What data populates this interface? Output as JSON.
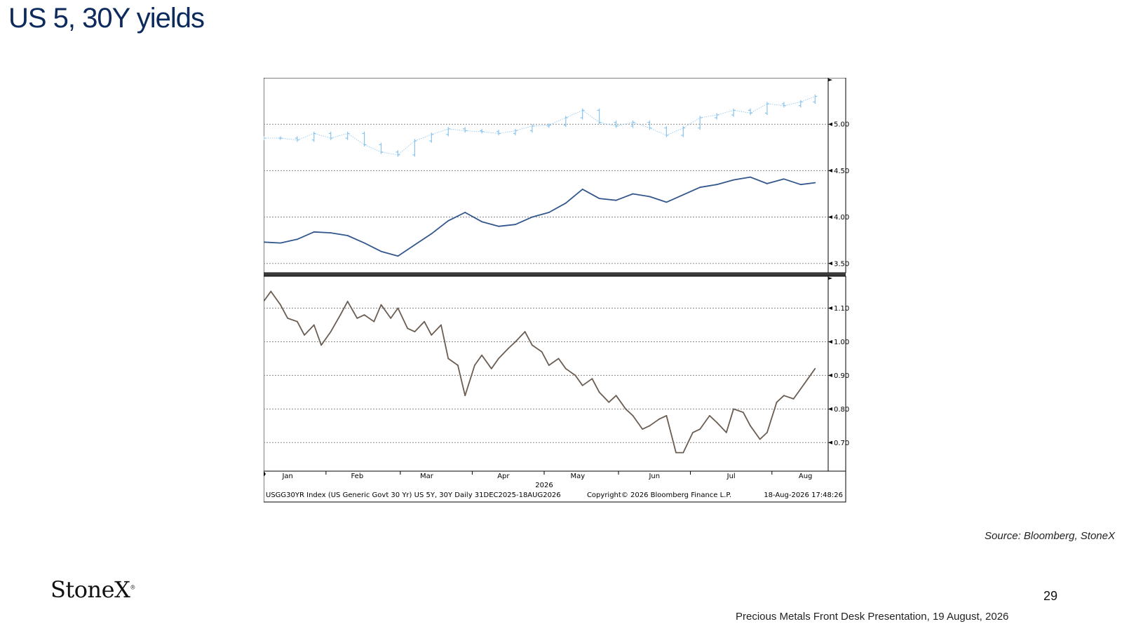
{
  "slide": {
    "title": "US 5, 30Y yields",
    "source": "Source: Bloomberg, StoneX",
    "logo": "StoneX",
    "logo_mark": "®",
    "page_number": "29",
    "footer": "Precious Metals Front Desk Presentation, 19 August, 2026"
  },
  "colors": {
    "us30y": "#89c4ee",
    "us5y": "#33578c",
    "spread": "#6b5d52",
    "grid": "#888888",
    "axis": "#000000",
    "title": "#0c2a5b"
  },
  "chart_data": [
    {
      "type": "line",
      "panel": "top",
      "ylim": [
        3.4,
        5.5
      ],
      "yticks": [
        3.5,
        4.0,
        4.5,
        5.0
      ],
      "ytick_labels": [
        "3.50",
        "4.00",
        "4.50",
        "5.00"
      ],
      "grid": true,
      "series": [
        {
          "style": "ohlc-bars",
          "color": "#89c4ee",
          "x": [
            "2025-12-31",
            "2026-01-07",
            "2026-01-14",
            "2026-01-21",
            "2026-01-28",
            "2026-02-04",
            "2026-02-11",
            "2026-02-18",
            "2026-02-25",
            "2026-03-04",
            "2026-03-11",
            "2026-03-18",
            "2026-03-25",
            "2026-04-01",
            "2026-04-08",
            "2026-04-15",
            "2026-04-22",
            "2026-04-29",
            "2026-05-06",
            "2026-05-13",
            "2026-05-20",
            "2026-05-27",
            "2026-06-03",
            "2026-06-10",
            "2026-06-17",
            "2026-06-24",
            "2026-07-01",
            "2026-07-08",
            "2026-07-15",
            "2026-07-22",
            "2026-07-29",
            "2026-08-05",
            "2026-08-12",
            "2026-08-18"
          ],
          "values": [
            4.85,
            4.85,
            4.83,
            4.9,
            4.85,
            4.9,
            4.78,
            4.7,
            4.67,
            4.82,
            4.89,
            4.95,
            4.93,
            4.92,
            4.9,
            4.93,
            4.98,
            4.99,
            5.07,
            5.15,
            5.02,
            4.98,
            5.02,
            4.96,
            4.88,
            4.96,
            5.07,
            5.1,
            5.15,
            5.12,
            5.22,
            5.2,
            5.24,
            5.3
          ]
        },
        {
          "style": "line",
          "color": "#33578c",
          "x": [
            "2025-12-31",
            "2026-01-07",
            "2026-01-14",
            "2026-01-21",
            "2026-01-28",
            "2026-02-04",
            "2026-02-11",
            "2026-02-18",
            "2026-02-25",
            "2026-03-04",
            "2026-03-11",
            "2026-03-18",
            "2026-03-25",
            "2026-04-01",
            "2026-04-08",
            "2026-04-15",
            "2026-04-22",
            "2026-04-29",
            "2026-05-06",
            "2026-05-13",
            "2026-05-20",
            "2026-05-27",
            "2026-06-03",
            "2026-06-10",
            "2026-06-17",
            "2026-06-24",
            "2026-07-01",
            "2026-07-08",
            "2026-07-15",
            "2026-07-22",
            "2026-07-29",
            "2026-08-05",
            "2026-08-12",
            "2026-08-18"
          ],
          "values": [
            3.73,
            3.72,
            3.76,
            3.84,
            3.83,
            3.8,
            3.72,
            3.63,
            3.58,
            3.7,
            3.82,
            3.96,
            4.05,
            3.95,
            3.9,
            3.92,
            4.0,
            4.05,
            4.15,
            4.3,
            4.2,
            4.18,
            4.25,
            4.22,
            4.16,
            4.24,
            4.32,
            4.35,
            4.4,
            4.43,
            4.36,
            4.41,
            4.35,
            4.37
          ]
        }
      ]
    },
    {
      "type": "line",
      "panel": "bottom",
      "ylim": [
        0.615,
        1.195
      ],
      "yticks": [
        0.7,
        0.8,
        0.9,
        1.0,
        1.1
      ],
      "ytick_labels": [
        "0.70",
        "0.80",
        "0.90",
        "1.00",
        "1.10"
      ],
      "grid": true,
      "series": [
        {
          "style": "line",
          "color": "#6b5d52",
          "x": [
            "2025-12-31",
            "2026-01-03",
            "2026-01-07",
            "2026-01-10",
            "2026-01-14",
            "2026-01-17",
            "2026-01-21",
            "2026-01-24",
            "2026-01-28",
            "2026-02-01",
            "2026-02-04",
            "2026-02-08",
            "2026-02-11",
            "2026-02-15",
            "2026-02-18",
            "2026-02-22",
            "2026-02-25",
            "2026-03-01",
            "2026-03-04",
            "2026-03-08",
            "2026-03-11",
            "2026-03-15",
            "2026-03-18",
            "2026-03-22",
            "2026-03-25",
            "2026-03-29",
            "2026-04-01",
            "2026-04-05",
            "2026-04-08",
            "2026-04-12",
            "2026-04-15",
            "2026-04-19",
            "2026-04-22",
            "2026-04-26",
            "2026-04-29",
            "2026-05-03",
            "2026-05-06",
            "2026-05-10",
            "2026-05-13",
            "2026-05-17",
            "2026-05-20",
            "2026-05-24",
            "2026-05-27",
            "2026-05-31",
            "2026-06-03",
            "2026-06-07",
            "2026-06-10",
            "2026-06-14",
            "2026-06-17",
            "2026-06-21",
            "2026-06-24",
            "2026-06-28",
            "2026-07-01",
            "2026-07-05",
            "2026-07-08",
            "2026-07-12",
            "2026-07-15",
            "2026-07-19",
            "2026-07-22",
            "2026-07-26",
            "2026-07-29",
            "2026-08-02",
            "2026-08-05",
            "2026-08-09",
            "2026-08-12",
            "2026-08-15",
            "2026-08-18"
          ],
          "values": [
            1.12,
            1.15,
            1.11,
            1.07,
            1.06,
            1.02,
            1.05,
            0.99,
            1.03,
            1.08,
            1.12,
            1.07,
            1.08,
            1.06,
            1.11,
            1.07,
            1.1,
            1.04,
            1.03,
            1.06,
            1.02,
            1.05,
            0.95,
            0.93,
            0.84,
            0.93,
            0.96,
            0.92,
            0.95,
            0.98,
            1.0,
            1.03,
            0.99,
            0.97,
            0.93,
            0.95,
            0.92,
            0.9,
            0.87,
            0.89,
            0.85,
            0.82,
            0.84,
            0.8,
            0.78,
            0.74,
            0.75,
            0.77,
            0.78,
            0.67,
            0.67,
            0.73,
            0.74,
            0.78,
            0.76,
            0.73,
            0.8,
            0.79,
            0.75,
            0.71,
            0.73,
            0.82,
            0.84,
            0.83,
            0.86,
            0.89,
            0.92
          ]
        }
      ]
    }
  ],
  "x_axis": {
    "ticks": [
      {
        "date": "2026-01-10",
        "label": "Jan"
      },
      {
        "date": "2026-02-08",
        "label": "Feb"
      },
      {
        "date": "2026-03-09",
        "label": "Mar"
      },
      {
        "date": "2026-04-10",
        "label": "Apr"
      },
      {
        "date": "2026-05-11",
        "label": "May"
      },
      {
        "date": "2026-06-12",
        "label": "Jun"
      },
      {
        "date": "2026-07-14",
        "label": "Jul"
      },
      {
        "date": "2026-08-14",
        "label": "Aug"
      }
    ],
    "month_boundaries": [
      "2026-01-26",
      "2026-02-26",
      "2026-03-28",
      "2026-04-27",
      "2026-05-28",
      "2026-06-27",
      "2026-07-31"
    ],
    "year_label": "2026",
    "range": [
      "2025-12-31",
      "2026-08-22"
    ]
  },
  "footer_strip": {
    "left": "USGG30YR Index (US Generic Govt 30 Yr) US 5Y, 30Y Daily 31DEC2025-18AUG2026",
    "center": "Copyright© 2026 Bloomberg Finance L.P.",
    "right": "18-Aug-2026 17:48:26"
  }
}
